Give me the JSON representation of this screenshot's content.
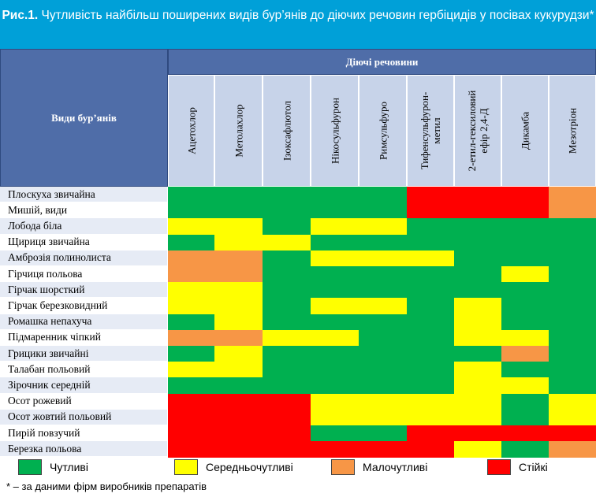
{
  "caption": {
    "figure_label": "Рис.1.",
    "text": "Чутливість найбільш поширених видів бур’янів до діючих речовин гербіцидів у посівах кукурудзи*"
  },
  "table": {
    "weeds_header": "Види бур’янів",
    "actives_header": "Діючі речовини",
    "columns": [
      "Ацетохлор",
      "Метолахлор",
      "Ізоксафлютол",
      "Нікосульфурон",
      "Римсульфуро",
      "Тифенсульфурон-метил",
      "2-етил-гексиловий ефір 2,4-Д",
      "Дикамба",
      "Мезотріон"
    ],
    "rows": [
      {
        "weed": "Плоскуха звичайна",
        "values": [
          "S",
          "S",
          "S",
          "S",
          "S",
          "R",
          "R",
          "R",
          "L"
        ]
      },
      {
        "weed": "Мишій, види",
        "values": [
          "S",
          "S",
          "S",
          "S",
          "S",
          "R",
          "R",
          "R",
          "L"
        ]
      },
      {
        "weed": "Лобода біла",
        "values": [
          "Y",
          "Y",
          "S",
          "Y",
          "Y",
          "S",
          "S",
          "S",
          "S"
        ]
      },
      {
        "weed": "Щириця звичайна",
        "values": [
          "S",
          "Y",
          "Y",
          "S",
          "S",
          "S",
          "S",
          "S",
          "S"
        ]
      },
      {
        "weed": "Амброзія полинолиста",
        "values": [
          "L",
          "L",
          "S",
          "Y",
          "Y",
          "Y",
          "S",
          "S",
          "S"
        ]
      },
      {
        "weed": "Гірчиця польова",
        "values": [
          "L",
          "L",
          "S",
          "S",
          "S",
          "S",
          "S",
          "Y",
          "S"
        ]
      },
      {
        "weed": "Гірчак шорсткий",
        "values": [
          "Y",
          "Y",
          "S",
          "S",
          "S",
          "S",
          "S",
          "S",
          "S"
        ]
      },
      {
        "weed": "Гірчак березковидний",
        "values": [
          "Y",
          "Y",
          "S",
          "Y",
          "Y",
          "S",
          "Y",
          "S",
          "S"
        ]
      },
      {
        "weed": "Ромашка непахуча",
        "values": [
          "S",
          "Y",
          "S",
          "S",
          "S",
          "S",
          "Y",
          "S",
          "S"
        ]
      },
      {
        "weed": "Підмаренник чіпкий",
        "values": [
          "L",
          "L",
          "Y",
          "Y",
          "S",
          "S",
          "Y",
          "Y",
          "S"
        ]
      },
      {
        "weed": "Грицики звичайні",
        "values": [
          "S",
          "Y",
          "S",
          "S",
          "S",
          "S",
          "S",
          "L",
          "S"
        ]
      },
      {
        "weed": "Талабан польовий",
        "values": [
          "Y",
          "Y",
          "S",
          "S",
          "S",
          "S",
          "Y",
          "S",
          "S"
        ]
      },
      {
        "weed": "Зірочник середній",
        "values": [
          "S",
          "S",
          "S",
          "S",
          "S",
          "S",
          "Y",
          "Y",
          "S"
        ]
      },
      {
        "weed": "Осот рожевий",
        "values": [
          "R",
          "R",
          "R",
          "Y",
          "Y",
          "Y",
          "Y",
          "S",
          "Y"
        ]
      },
      {
        "weed": "Осот жовтий польовий",
        "values": [
          "R",
          "R",
          "R",
          "Y",
          "Y",
          "Y",
          "Y",
          "S",
          "Y"
        ]
      },
      {
        "weed": "Пирій повзучий",
        "values": [
          "R",
          "R",
          "R",
          "S",
          "S",
          "R",
          "R",
          "R",
          "R"
        ]
      },
      {
        "weed": "Березка польова",
        "values": [
          "R",
          "R",
          "R",
          "R",
          "R",
          "R",
          "Y",
          "S",
          "L"
        ]
      }
    ]
  },
  "legend": [
    {
      "code": "S",
      "label": "Чутливі",
      "color": "#00b050"
    },
    {
      "code": "Y",
      "label": "Середньочутливі",
      "color": "#ffff00"
    },
    {
      "code": "L",
      "label": "Малочутливі",
      "color": "#f79646"
    },
    {
      "code": "R",
      "label": "Стійкі",
      "color": "#ff0000"
    }
  ],
  "footnote": "* – за даними фірм виробників препаратів"
}
